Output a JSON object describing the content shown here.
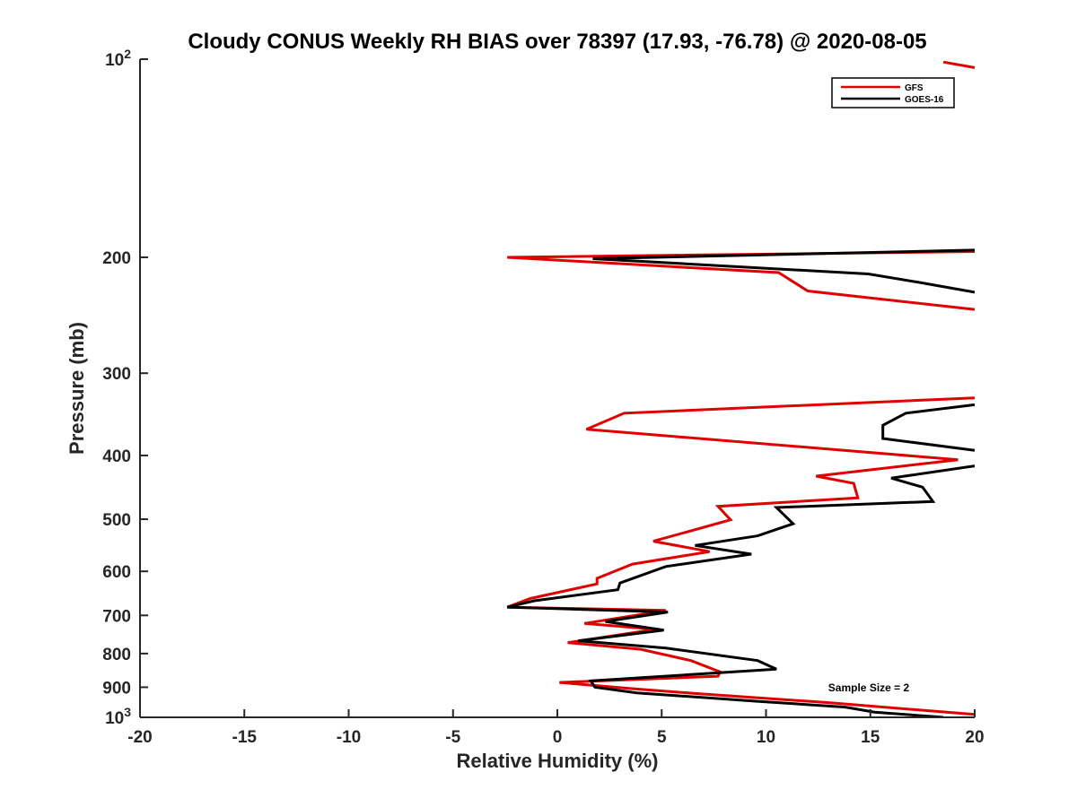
{
  "chart_data": {
    "type": "line",
    "title": "Cloudy CONUS Weekly RH BIAS over 78397 (17.93, -76.78) @ 2020-08-05",
    "xlabel": "Relative Humidity (%)",
    "ylabel": "Pressure (mb)",
    "xlim": [
      -20,
      20
    ],
    "ylim": [
      100,
      1000
    ],
    "y_scale": "log",
    "y_reversed": true,
    "grid": false,
    "legend_position": "top-right",
    "x_ticks": [
      "-20",
      "-15",
      "-10",
      "-5",
      "0",
      "5",
      "10",
      "15",
      "20"
    ],
    "y_ticks": [
      {
        "value": 100,
        "base": "10",
        "exp": "2"
      },
      {
        "value": 200,
        "label": "200"
      },
      {
        "value": 300,
        "label": "300"
      },
      {
        "value": 400,
        "label": "400"
      },
      {
        "value": 500,
        "label": "500"
      },
      {
        "value": 600,
        "label": "600"
      },
      {
        "value": 700,
        "label": "700"
      },
      {
        "value": 800,
        "label": "800"
      },
      {
        "value": 900,
        "label": "900"
      },
      {
        "value": 1000,
        "base": "10",
        "exp": "3"
      }
    ],
    "annotation": "Sample Size = 2",
    "series": [
      {
        "name": "GFS",
        "color": "#e00000",
        "points": [
          [
            18.5,
            101
          ],
          [
            20,
            103
          ],
          null,
          [
            20,
            240
          ],
          [
            12,
            225
          ],
          [
            10.6,
            211
          ],
          [
            -2.4,
            200
          ],
          [
            20,
            196
          ],
          null,
          [
            20,
            327
          ],
          [
            3.2,
            345
          ],
          [
            1.4,
            365
          ],
          [
            19.2,
            406
          ],
          [
            12.4,
            430
          ],
          [
            14.2,
            441
          ],
          [
            14.4,
            464
          ],
          [
            7.7,
            478
          ],
          [
            8.3,
            501
          ],
          [
            4.6,
            540
          ],
          [
            7.3,
            560
          ],
          [
            3.6,
            585
          ],
          [
            1.9,
            615
          ],
          [
            1.9,
            627
          ],
          [
            -1.3,
            660
          ],
          [
            -2.4,
            680
          ],
          [
            5.2,
            688
          ],
          [
            1.3,
            720
          ],
          [
            4.7,
            735
          ],
          [
            0.5,
            770
          ],
          [
            4,
            788
          ],
          [
            6.4,
            820
          ],
          [
            7.8,
            853
          ],
          [
            7.7,
            866
          ],
          [
            0.1,
            885
          ],
          [
            3.7,
            905
          ],
          [
            6.6,
            920
          ],
          [
            13,
            950
          ],
          [
            20,
            990
          ]
        ]
      },
      {
        "name": "GOES-16",
        "color": "#000000",
        "points": [
          [
            20,
            226
          ],
          [
            17.2,
            218
          ],
          [
            14.9,
            212
          ],
          [
            1.7,
            201
          ],
          [
            20,
            195
          ],
          null,
          [
            20,
            335
          ],
          [
            16.7,
            345
          ],
          [
            15.6,
            360
          ],
          [
            15.6,
            377
          ],
          [
            20,
            393
          ],
          null,
          [
            20,
            415
          ],
          [
            16,
            433
          ],
          [
            17.5,
            447
          ],
          [
            18,
            470
          ],
          [
            10.5,
            480
          ],
          [
            11.3,
            508
          ],
          [
            9.6,
            530
          ],
          [
            6.6,
            548
          ],
          [
            9.3,
            565
          ],
          [
            5.2,
            590
          ],
          [
            3,
            625
          ],
          [
            2.9,
            640
          ],
          [
            -1.1,
            665
          ],
          [
            -2.4,
            680
          ],
          [
            5.3,
            692
          ],
          [
            2.3,
            715
          ],
          [
            5.1,
            737
          ],
          [
            1,
            765
          ],
          [
            5.2,
            785
          ],
          [
            9.6,
            820
          ],
          [
            10.5,
            845
          ],
          [
            1.6,
            880
          ],
          [
            1.8,
            900
          ],
          [
            3.8,
            918
          ],
          [
            9.5,
            945
          ],
          [
            13.8,
            965
          ],
          [
            15.2,
            982
          ],
          [
            18.5,
            1000
          ]
        ]
      }
    ]
  }
}
